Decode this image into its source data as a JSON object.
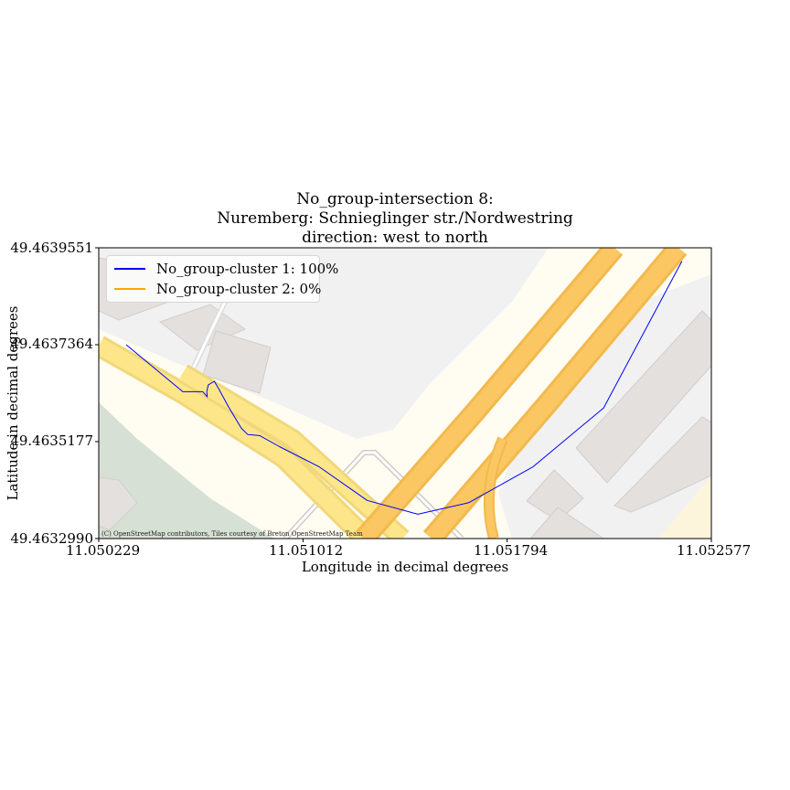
{
  "chart_data": {
    "type": "line",
    "title_lines": [
      "No_group-intersection 8:",
      "Nuremberg: Schnieglinger str./Nordwestring",
      "direction: west to north"
    ],
    "xlabel": "Longitude in decimal degrees",
    "ylabel": "Latitude in decimal degrees",
    "xlim": [
      11.050229,
      11.052577
    ],
    "ylim": [
      49.463299,
      49.4639551
    ],
    "x_ticks": [
      "11.050229",
      "11.051012",
      "11.051794",
      "11.052577"
    ],
    "y_ticks": [
      "49.4632990",
      "49.4635177",
      "49.4637364",
      "49.4639551"
    ],
    "grid": false,
    "legend_position": "top-left",
    "series": [
      {
        "name": "No_group-cluster 1: 100%",
        "color": "#0000ff",
        "x": [
          11.050334,
          11.050551,
          11.050628,
          11.050645,
          11.050643,
          11.050649,
          11.050672,
          11.05069,
          11.050727,
          11.050775,
          11.0508,
          11.050846,
          11.050922,
          11.051073,
          11.051258,
          11.051452,
          11.051647,
          11.051894,
          11.052164,
          11.052464
        ],
        "y": [
          49.4637364,
          49.4636303,
          49.4636303,
          49.4636186,
          49.4636303,
          49.4636458,
          49.4636539,
          49.4636358,
          49.4635956,
          49.4635485,
          49.4635338,
          49.4635314,
          49.4635064,
          49.4634612,
          49.463385,
          49.4633539,
          49.4633798,
          49.4634612,
          49.4635939,
          49.463925
        ]
      },
      {
        "name": "No_group-cluster 2: 0%",
        "color": "#ffa500",
        "x": [],
        "y": []
      }
    ]
  },
  "attribution": "(C) OpenStreetMap contributors, Tiles courtesy of Breton OpenStreetMap Team"
}
